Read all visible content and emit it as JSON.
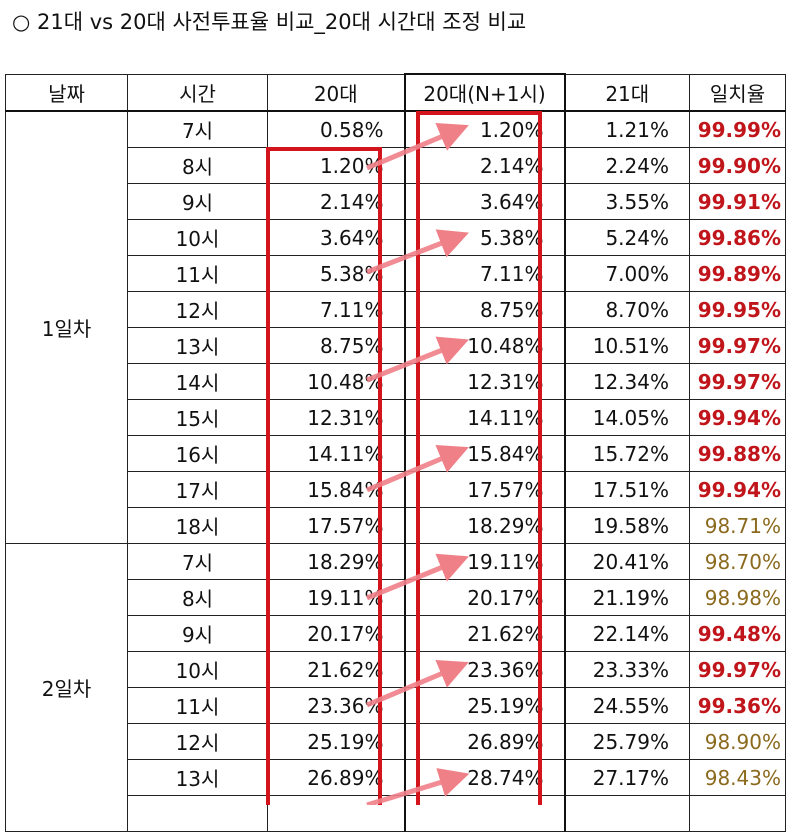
{
  "title": "○ 21대 vs 20대 사전투표율 비교_20대 시간대 조정 비교",
  "columns": [
    "날짜",
    "시간",
    "20대",
    "20대(N+1시)",
    "21대",
    "일치율"
  ],
  "groups": [
    {
      "label": "1일차",
      "rows": [
        {
          "time": "7시",
          "v20": "0.58%",
          "v20n1": "1.20%",
          "v21": "1.21%",
          "match": "99.99%",
          "style": "red"
        },
        {
          "time": "8시",
          "v20": "1.20%",
          "v20n1": "2.14%",
          "v21": "2.24%",
          "match": "99.90%",
          "style": "red"
        },
        {
          "time": "9시",
          "v20": "2.14%",
          "v20n1": "3.64%",
          "v21": "3.55%",
          "match": "99.91%",
          "style": "red"
        },
        {
          "time": "10시",
          "v20": "3.64%",
          "v20n1": "5.38%",
          "v21": "5.24%",
          "match": "99.86%",
          "style": "red"
        },
        {
          "time": "11시",
          "v20": "5.38%",
          "v20n1": "7.11%",
          "v21": "7.00%",
          "match": "99.89%",
          "style": "red"
        },
        {
          "time": "12시",
          "v20": "7.11%",
          "v20n1": "8.75%",
          "v21": "8.70%",
          "match": "99.95%",
          "style": "red"
        },
        {
          "time": "13시",
          "v20": "8.75%",
          "v20n1": "10.48%",
          "v21": "10.51%",
          "match": "99.97%",
          "style": "red"
        },
        {
          "time": "14시",
          "v20": "10.48%",
          "v20n1": "12.31%",
          "v21": "12.34%",
          "match": "99.97%",
          "style": "red"
        },
        {
          "time": "15시",
          "v20": "12.31%",
          "v20n1": "14.11%",
          "v21": "14.05%",
          "match": "99.94%",
          "style": "red"
        },
        {
          "time": "16시",
          "v20": "14.11%",
          "v20n1": "15.84%",
          "v21": "15.72%",
          "match": "99.88%",
          "style": "red"
        },
        {
          "time": "17시",
          "v20": "15.84%",
          "v20n1": "17.57%",
          "v21": "17.51%",
          "match": "99.94%",
          "style": "red"
        },
        {
          "time": "18시",
          "v20": "17.57%",
          "v20n1": "18.29%",
          "v21": "19.58%",
          "match": "98.71%",
          "style": "brown"
        }
      ]
    },
    {
      "label": "2일차",
      "rows": [
        {
          "time": "7시",
          "v20": "18.29%",
          "v20n1": "19.11%",
          "v21": "20.41%",
          "match": "98.70%",
          "style": "brown"
        },
        {
          "time": "8시",
          "v20": "19.11%",
          "v20n1": "20.17%",
          "v21": "21.19%",
          "match": "98.98%",
          "style": "brown"
        },
        {
          "time": "9시",
          "v20": "20.17%",
          "v20n1": "21.62%",
          "v21": "22.14%",
          "match": "99.48%",
          "style": "red"
        },
        {
          "time": "10시",
          "v20": "21.62%",
          "v20n1": "23.36%",
          "v21": "23.33%",
          "match": "99.97%",
          "style": "red"
        },
        {
          "time": "11시",
          "v20": "23.36%",
          "v20n1": "25.19%",
          "v21": "24.55%",
          "match": "99.36%",
          "style": "red"
        },
        {
          "time": "12시",
          "v20": "25.19%",
          "v20n1": "26.89%",
          "v21": "25.79%",
          "match": "98.90%",
          "style": "brown"
        },
        {
          "time": "13시",
          "v20": "26.89%",
          "v20n1": "28.74%",
          "v21": "27.17%",
          "match": "98.43%",
          "style": "brown"
        }
      ]
    }
  ],
  "colors": {
    "highlight_box": "#d4141c",
    "arrow": "#f08088",
    "match_high": "#c0151b",
    "match_low": "#8b6a1e"
  }
}
